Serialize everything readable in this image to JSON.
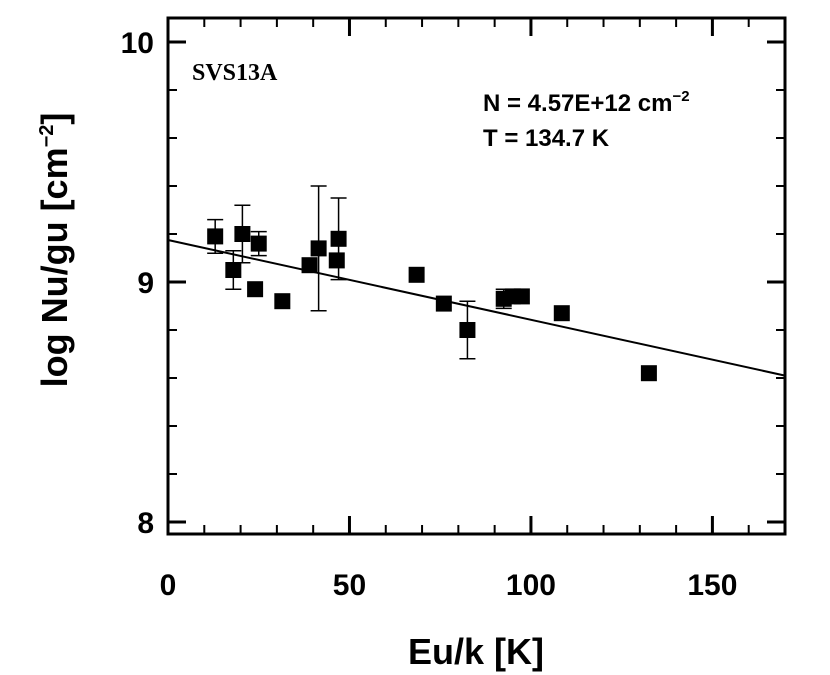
{
  "chart_data": {
    "type": "scatter",
    "source_label": "SVS13A",
    "annotation_n_prefix": "N = 4.57E+12 cm",
    "annotation_n_exp": "−2",
    "annotation_t": "T = 134.7 K",
    "xlabel": "Eu/k [K]",
    "ylabel_main": "log Nu/gu [cm",
    "ylabel_exp": "−2",
    "ylabel_close": "]",
    "xlim": [
      0,
      170
    ],
    "ylim": [
      7.95,
      10.1
    ],
    "x_ticks": [
      {
        "value": 0,
        "label": "0"
      },
      {
        "value": 50,
        "label": "50"
      },
      {
        "value": 100,
        "label": "100"
      },
      {
        "value": 150,
        "label": "150"
      }
    ],
    "x_minor_ticks": [
      10,
      20,
      30,
      40,
      60,
      70,
      80,
      90,
      110,
      120,
      130,
      140,
      160
    ],
    "y_ticks": [
      {
        "value": 8,
        "label": "8"
      },
      {
        "value": 9,
        "label": "9"
      },
      {
        "value": 10,
        "label": "10"
      }
    ],
    "y_minor_ticks": [
      8.2,
      8.4,
      8.6,
      8.8,
      9.2,
      9.4,
      9.6,
      9.8
    ],
    "points": [
      {
        "x": 13,
        "y": 9.19,
        "err": 0.07
      },
      {
        "x": 18,
        "y": 9.05,
        "err": 0.08
      },
      {
        "x": 20.5,
        "y": 9.2,
        "err": 0.12
      },
      {
        "x": 24,
        "y": 8.97,
        "err": null
      },
      {
        "x": 25,
        "y": 9.16,
        "err": 0.05
      },
      {
        "x": 31.5,
        "y": 8.92,
        "err": null
      },
      {
        "x": 39,
        "y": 9.07,
        "err": null
      },
      {
        "x": 41.5,
        "y": 9.14,
        "err": 0.26
      },
      {
        "x": 46.5,
        "y": 9.09,
        "err": null
      },
      {
        "x": 47,
        "y": 9.18,
        "err": 0.17
      },
      {
        "x": 68.5,
        "y": 9.03,
        "err": null
      },
      {
        "x": 76,
        "y": 8.91,
        "err": null
      },
      {
        "x": 82.5,
        "y": 8.8,
        "err": 0.12
      },
      {
        "x": 92.5,
        "y": 8.93,
        "err": 0.04
      },
      {
        "x": 95,
        "y": 8.94,
        "err": null
      },
      {
        "x": 97.5,
        "y": 8.94,
        "err": null
      },
      {
        "x": 108.5,
        "y": 8.87,
        "err": null
      },
      {
        "x": 132.5,
        "y": 8.62,
        "err": null
      }
    ],
    "fit": {
      "x": [
        0,
        170
      ],
      "y": [
        9.175,
        8.61
      ]
    }
  }
}
